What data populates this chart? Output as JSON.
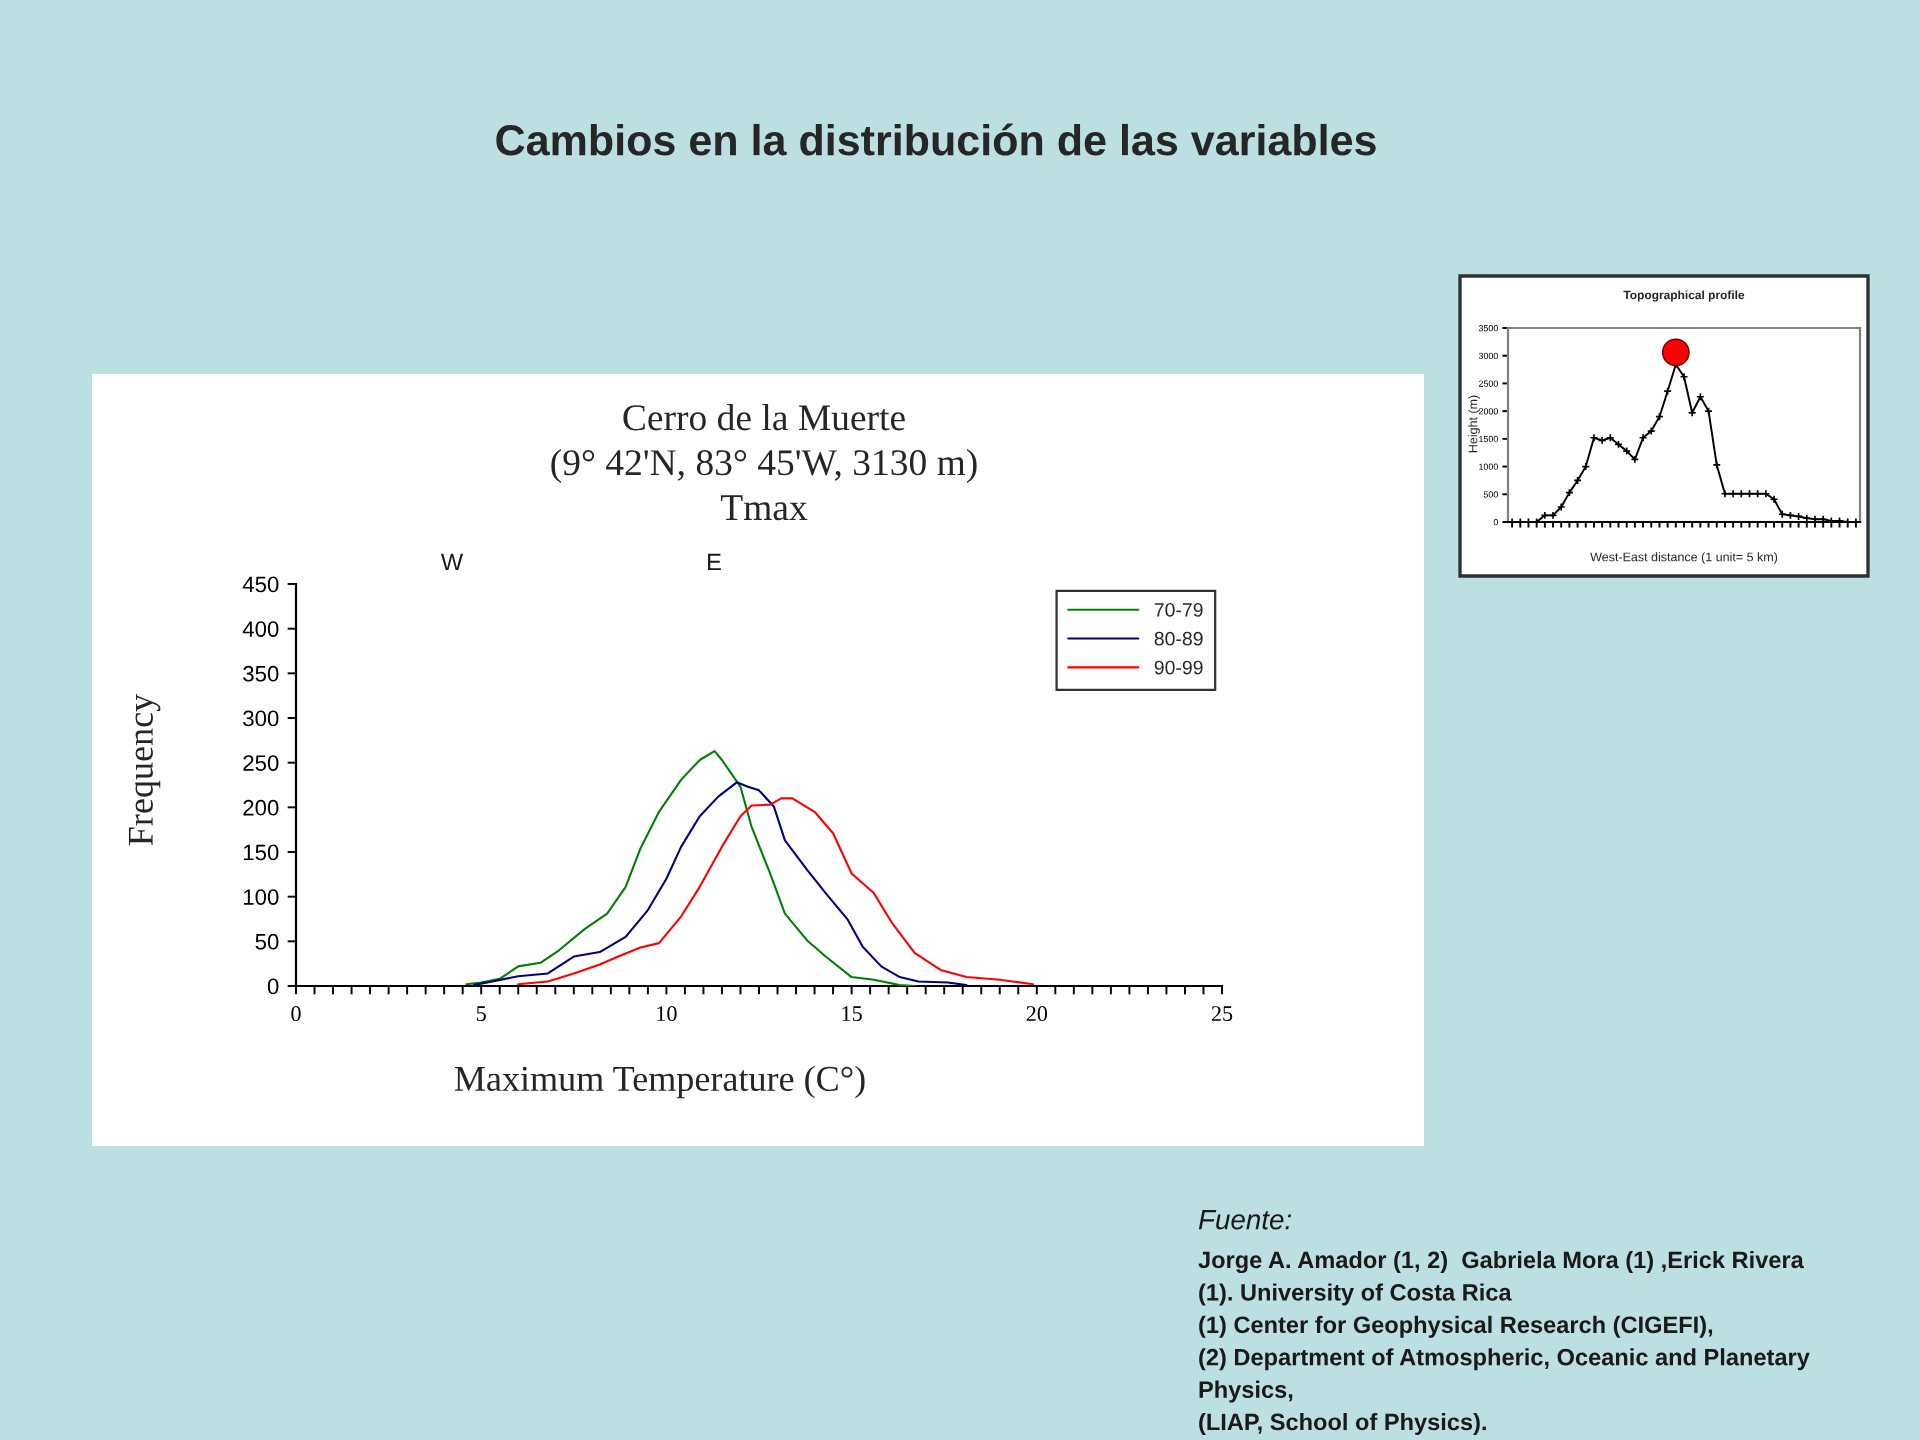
{
  "chart_data": [
    {
      "type": "line",
      "title": "Cambios en la distribución de las variables",
      "subtitle": "Cerro de la Muerte\n(9° 42'N, 83° 45'W, 3130 m)\nTmax",
      "xlabel": "Maximum Temperature (C°)",
      "ylabel": "Frequency",
      "annotations": [
        "W",
        "E",
        "Fuente:",
        "Jorge A. Amador (1, 2)  Gabriela Mora (1) ,Erick Rivera",
        "(1). University of Costa Rica",
        "(1) Center for Geophysical Research (CIGEFI),",
        "(2) Department of Atmospheric, Oceanic and Planetary",
        "Physics,",
        "(LIAP, School of Physics)."
      ],
      "xlim": [
        0,
        25
      ],
      "ylim": [
        0,
        450
      ],
      "xticks": [
        0,
        {
          "value": 0.5,
          "label": null
        },
        {
          "value": 1,
          "label": null
        },
        {
          "value": 1.5,
          "label": null
        },
        {
          "value": 2,
          "label": null
        },
        {
          "value": 2.5,
          "label": null
        },
        {
          "value": 3,
          "label": null
        },
        {
          "value": 3.5,
          "label": null
        },
        {
          "value": 4,
          "label": null
        },
        {
          "value": 4.5,
          "label": null
        },
        5,
        {
          "value": 5.5,
          "label": null
        },
        {
          "value": 6,
          "label": null
        },
        {
          "value": 6.5,
          "label": null
        },
        {
          "value": 7,
          "label": null
        },
        {
          "value": 7.5,
          "label": null
        },
        {
          "value": 8,
          "label": null
        },
        {
          "value": 8.5,
          "label": null
        },
        {
          "value": 9,
          "label": null
        },
        {
          "value": 9.5,
          "label": null
        },
        10,
        {
          "value": 10.5,
          "label": null
        },
        {
          "value": 11,
          "label": null
        },
        {
          "value": 11.5,
          "label": null
        },
        {
          "value": 12,
          "label": null
        },
        {
          "value": 12.5,
          "label": null
        },
        {
          "value": 13,
          "label": null
        },
        {
          "value": 13.5,
          "label": null
        },
        {
          "value": 14,
          "label": null
        },
        {
          "value": 14.5,
          "label": null
        },
        15,
        {
          "value": 15.5,
          "label": null
        },
        {
          "value": 16,
          "label": null
        },
        {
          "value": 16.5,
          "label": null
        },
        {
          "value": 17,
          "label": null
        },
        {
          "value": 17.5,
          "label": null
        },
        {
          "value": 18,
          "label": null
        },
        {
          "value": 18.5,
          "label": null
        },
        {
          "value": 19,
          "label": null
        },
        {
          "value": 19.5,
          "label": null
        },
        20,
        {
          "value": 20.5,
          "label": null
        },
        {
          "value": 21,
          "label": null
        },
        {
          "value": 21.5,
          "label": null
        },
        {
          "value": 22,
          "label": null
        },
        {
          "value": 22.5,
          "label": null
        },
        {
          "value": 23,
          "label": null
        },
        {
          "value": 23.5,
          "label": null
        },
        {
          "value": 24,
          "label": null
        },
        {
          "value": 24.5,
          "label": null
        },
        25
      ],
      "yticks": [
        0,
        50,
        100,
        150,
        200,
        250,
        300,
        350,
        400,
        450
      ],
      "legend": "top right",
      "series": [
        {
          "name": "70-79",
          "color": "#008000",
          "x": [
            4.6,
            5.0,
            5.5,
            6.0,
            6.6,
            7.1,
            7.8,
            8.4,
            8.9,
            9.3,
            9.8,
            10.4,
            10.9,
            11.3,
            11.5,
            12.0,
            12.3,
            12.8,
            13.2,
            13.8,
            14.3,
            15.0,
            15.6,
            16.3,
            16.7
          ],
          "values": [
            2,
            4,
            8,
            22,
            26,
            40,
            64,
            81,
            111,
            154,
            195,
            231,
            253,
            263,
            253,
            223,
            178,
            126,
            81,
            51,
            33,
            10,
            7,
            1,
            0
          ]
        },
        {
          "name": "80-89",
          "color": "#000080",
          "x": [
            4.8,
            5.3,
            6.0,
            6.8,
            7.5,
            8.2,
            8.9,
            9.5,
            10.0,
            10.4,
            10.9,
            11.4,
            11.9,
            12.2,
            12.5,
            12.9,
            13.2,
            13.8,
            14.3,
            14.9,
            15.3,
            15.8,
            16.3,
            16.8,
            17.6,
            18.1
          ],
          "values": [
            1,
            5,
            11,
            14,
            33,
            38,
            55,
            85,
            120,
            156,
            190,
            212,
            228,
            223,
            219,
            201,
            163,
            130,
            104,
            74,
            44,
            22,
            10,
            5,
            4,
            1
          ]
        },
        {
          "name": "90-99",
          "color": "#ff0000",
          "x": [
            6.0,
            6.8,
            7.5,
            8.2,
            8.7,
            9.3,
            9.8,
            10.4,
            10.9,
            11.5,
            12.0,
            12.3,
            12.8,
            13.1,
            13.4,
            14.0,
            14.5,
            15.0,
            15.6,
            16.1,
            16.7,
            17.4,
            18.1,
            19.0,
            19.9
          ],
          "values": [
            2,
            5,
            14,
            24,
            33,
            43,
            48,
            78,
            111,
            156,
            190,
            202,
            203,
            210,
            210,
            195,
            171,
            126,
            104,
            70,
            37,
            18,
            10,
            7,
            2
          ]
        }
      ]
    },
    {
      "type": "line",
      "title": "Topographical profile",
      "xlabel": "West-East distance (1 unit= 5 km)",
      "ylabel": "Height (m)",
      "tick_labels": "y",
      "ylim": [
        0,
        3500
      ],
      "yticks": [
        0,
        500,
        1000,
        1500,
        2000,
        2500,
        3000,
        3500
      ],
      "categories": [
        null,
        null,
        null,
        null,
        null,
        null,
        null,
        null,
        null,
        null,
        null,
        null,
        null,
        null,
        null,
        null,
        null,
        null,
        null,
        null,
        null,
        null,
        null,
        null,
        null,
        null,
        null,
        null,
        null,
        null,
        null,
        null,
        null,
        null,
        null,
        null,
        null,
        null,
        null,
        null,
        null,
        null,
        null
      ],
      "series": [
        {
          "color": "#000000",
          "marker": "cross",
          "values": [
            0,
            0,
            0,
            0,
            120,
            120,
            270,
            530,
            750,
            1000,
            1520,
            1470,
            1520,
            1400,
            1280,
            1130,
            1520,
            1640,
            1900,
            2360,
            2840,
            2620,
            1970,
            2260,
            2000,
            1030,
            510,
            510,
            510,
            510,
            510,
            510,
            410,
            140,
            120,
            100,
            70,
            50,
            50,
            20,
            20,
            0,
            0
          ]
        },
        {
          "type": "scatter",
          "color": "#ff0000",
          "marker": "circle",
          "values": [
            null,
            null,
            null,
            null,
            null,
            null,
            null,
            null,
            null,
            null,
            null,
            null,
            null,
            null,
            null,
            null,
            null,
            null,
            null,
            null,
            3060,
            null,
            null,
            null,
            null,
            null,
            null,
            null,
            null,
            null,
            null,
            null,
            null,
            null,
            null,
            null,
            null,
            null,
            null,
            null,
            null,
            null,
            null
          ]
        }
      ]
    }
  ]
}
